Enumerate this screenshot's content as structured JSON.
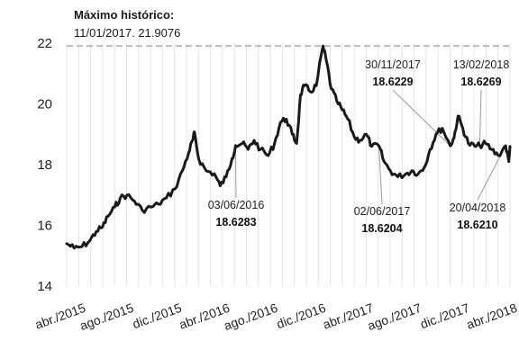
{
  "chart_data": {
    "type": "line",
    "title": "Máximo histórico:",
    "subtitle": "11/01/2017. 21.9076",
    "xlabel": "",
    "ylabel": "",
    "ylim": [
      14,
      22
    ],
    "yticks": [
      14,
      16,
      18,
      20,
      22
    ],
    "xlim": [
      "2015-04-01",
      "2018-05-01"
    ],
    "xticks": [
      {
        "date": "2015-04-01",
        "label": "abr./2015"
      },
      {
        "date": "2015-08-01",
        "label": "ago./2015"
      },
      {
        "date": "2015-12-01",
        "label": "dic./2015"
      },
      {
        "date": "2016-04-01",
        "label": "abr./2016"
      },
      {
        "date": "2016-08-01",
        "label": "ago./2016"
      },
      {
        "date": "2016-12-01",
        "label": "dic./2016"
      },
      {
        "date": "2017-04-01",
        "label": "abr./2017"
      },
      {
        "date": "2017-08-01",
        "label": "ago./2017"
      },
      {
        "date": "2017-12-01",
        "label": "dic./2017"
      },
      {
        "date": "2018-04-01",
        "label": "abr./2018"
      }
    ],
    "grid": {
      "x": true,
      "y": false
    },
    "reference_line": {
      "y": 21.9076,
      "style": "dashed"
    },
    "colors": {
      "line": "#1a1a1a",
      "grid": "#e4e4e4",
      "reference": "#bdbdbd"
    },
    "series": [
      {
        "points": [
          [
            "2015-04-01",
            15.4
          ],
          [
            "2015-04-20",
            15.25
          ],
          [
            "2015-05-10",
            15.3
          ],
          [
            "2015-05-30",
            15.5
          ],
          [
            "2015-06-15",
            15.8
          ],
          [
            "2015-07-01",
            15.95
          ],
          [
            "2015-07-15",
            16.3
          ],
          [
            "2015-08-01",
            16.6
          ],
          [
            "2015-08-15",
            16.9
          ],
          [
            "2015-09-01",
            17.0
          ],
          [
            "2015-09-20",
            16.8
          ],
          [
            "2015-10-10",
            16.5
          ],
          [
            "2015-11-01",
            16.6
          ],
          [
            "2015-11-20",
            16.7
          ],
          [
            "2015-12-10",
            16.9
          ],
          [
            "2016-01-01",
            17.2
          ],
          [
            "2016-01-20",
            17.8
          ],
          [
            "2016-02-05",
            18.4
          ],
          [
            "2016-02-15",
            18.8
          ],
          [
            "2016-02-20",
            19.05
          ],
          [
            "2016-03-01",
            18.2
          ],
          [
            "2016-03-20",
            17.8
          ],
          [
            "2016-04-10",
            17.7
          ],
          [
            "2016-04-25",
            17.3
          ],
          [
            "2016-05-10",
            17.6
          ],
          [
            "2016-05-25",
            18.2
          ],
          [
            "2016-06-03",
            18.6283
          ],
          [
            "2016-06-20",
            18.7
          ],
          [
            "2016-07-05",
            18.5
          ],
          [
            "2016-07-20",
            18.8
          ],
          [
            "2016-08-05",
            18.5
          ],
          [
            "2016-08-25",
            18.3
          ],
          [
            "2016-09-10",
            18.7
          ],
          [
            "2016-09-25",
            19.4
          ],
          [
            "2016-10-10",
            19.5
          ],
          [
            "2016-10-25",
            19.0
          ],
          [
            "2016-11-05",
            18.7
          ],
          [
            "2016-11-15",
            20.3
          ],
          [
            "2016-11-25",
            20.6
          ],
          [
            "2016-12-10",
            20.4
          ],
          [
            "2016-12-25",
            20.6
          ],
          [
            "2017-01-11",
            21.9076
          ],
          [
            "2017-01-20",
            21.4
          ],
          [
            "2017-02-01",
            20.5
          ],
          [
            "2017-02-15",
            20.1
          ],
          [
            "2017-03-01",
            19.8
          ],
          [
            "2017-03-15",
            19.5
          ],
          [
            "2017-04-01",
            18.9
          ],
          [
            "2017-04-15",
            18.8
          ],
          [
            "2017-05-01",
            19.0
          ],
          [
            "2017-05-15",
            18.6
          ],
          [
            "2017-06-02",
            18.6204
          ],
          [
            "2017-06-15",
            18.1
          ],
          [
            "2017-07-01",
            17.8
          ],
          [
            "2017-07-20",
            17.6
          ],
          [
            "2017-08-10",
            17.7
          ],
          [
            "2017-08-25",
            17.8
          ],
          [
            "2017-09-10",
            17.7
          ],
          [
            "2017-09-25",
            17.9
          ],
          [
            "2017-10-10",
            18.5
          ],
          [
            "2017-10-25",
            19.0
          ],
          [
            "2017-11-10",
            19.2
          ],
          [
            "2017-11-30",
            18.6229
          ],
          [
            "2017-12-10",
            18.9
          ],
          [
            "2017-12-20",
            19.6
          ],
          [
            "2018-01-01",
            19.2
          ],
          [
            "2018-01-15",
            18.7
          ],
          [
            "2018-02-01",
            18.6
          ],
          [
            "2018-02-13",
            18.6269
          ],
          [
            "2018-02-28",
            18.7
          ],
          [
            "2018-03-15",
            18.5
          ],
          [
            "2018-04-01",
            18.3
          ],
          [
            "2018-04-20",
            18.621
          ],
          [
            "2018-04-28",
            18.1
          ],
          [
            "2018-05-01",
            18.6
          ]
        ]
      }
    ],
    "annotations": [
      {
        "date": "03/06/2016",
        "value": "18.6283",
        "x": "2016-06-03",
        "y": 18.6283
      },
      {
        "date": "02/06/2017",
        "value": "18.6204",
        "x": "2017-06-02",
        "y": 18.6204
      },
      {
        "date": "30/11/2017",
        "value": "18.6229",
        "x": "2017-11-30",
        "y": 18.6229
      },
      {
        "date": "13/02/2018",
        "value": "18.6269",
        "x": "2018-02-13",
        "y": 18.6269
      },
      {
        "date": "20/04/2018",
        "value": "18.6210",
        "x": "2018-04-20",
        "y": 18.621
      }
    ]
  }
}
